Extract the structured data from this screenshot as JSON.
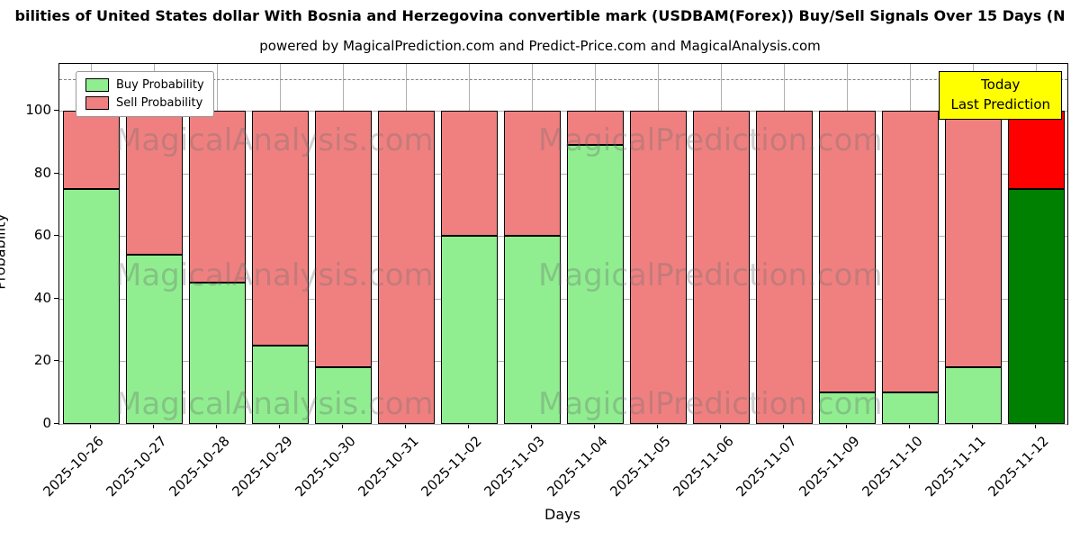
{
  "title": "bilities of United States dollar With Bosnia and Herzegovina convertible mark (USDBAM(Forex)) Buy/Sell Signals Over 15 Days (N",
  "subtitle": "powered by MagicalPrediction.com and Predict-Price.com and MagicalAnalysis.com",
  "chart_data": {
    "type": "bar",
    "stacked": true,
    "title": "bilities of United States dollar With Bosnia and Herzegovina convertible mark (USDBAM(Forex)) Buy/Sell Signals Over 15 Days (N",
    "subtitle": "powered by MagicalPrediction.com and Predict-Price.com and MagicalAnalysis.com",
    "xlabel": "Days",
    "ylabel": "Probability",
    "ylim": [
      0,
      115
    ],
    "yticks": [
      0,
      20,
      40,
      60,
      80,
      100
    ],
    "grid": true,
    "legend_position": "upper left",
    "categories": [
      "2025-10-26",
      "2025-10-27",
      "2025-10-28",
      "2025-10-29",
      "2025-10-30",
      "2025-10-31",
      "2025-11-02",
      "2025-11-03",
      "2025-11-04",
      "2025-11-05",
      "2025-11-06",
      "2025-11-07",
      "2025-11-09",
      "2025-11-10",
      "2025-11-11",
      "2025-11-12"
    ],
    "series": [
      {
        "name": "Buy Probability",
        "color": "#90ee90",
        "today_color": "#008000",
        "values": [
          75,
          54,
          45,
          25,
          18,
          0,
          60,
          60,
          89,
          0,
          0,
          0,
          10,
          10,
          18,
          75
        ]
      },
      {
        "name": "Sell Probability",
        "color": "#f08080",
        "today_color": "#ff0000",
        "values": [
          25,
          46,
          55,
          75,
          82,
          100,
          40,
          40,
          11,
          100,
          100,
          100,
          90,
          90,
          82,
          25
        ]
      }
    ],
    "dashed_line_y": 110,
    "annotation": {
      "lines": [
        "Today",
        "Last Prediction"
      ],
      "bg": "#ffff00"
    },
    "watermarks": [
      "MagicalAnalysis.com",
      "MagicalPrediction.com"
    ]
  }
}
